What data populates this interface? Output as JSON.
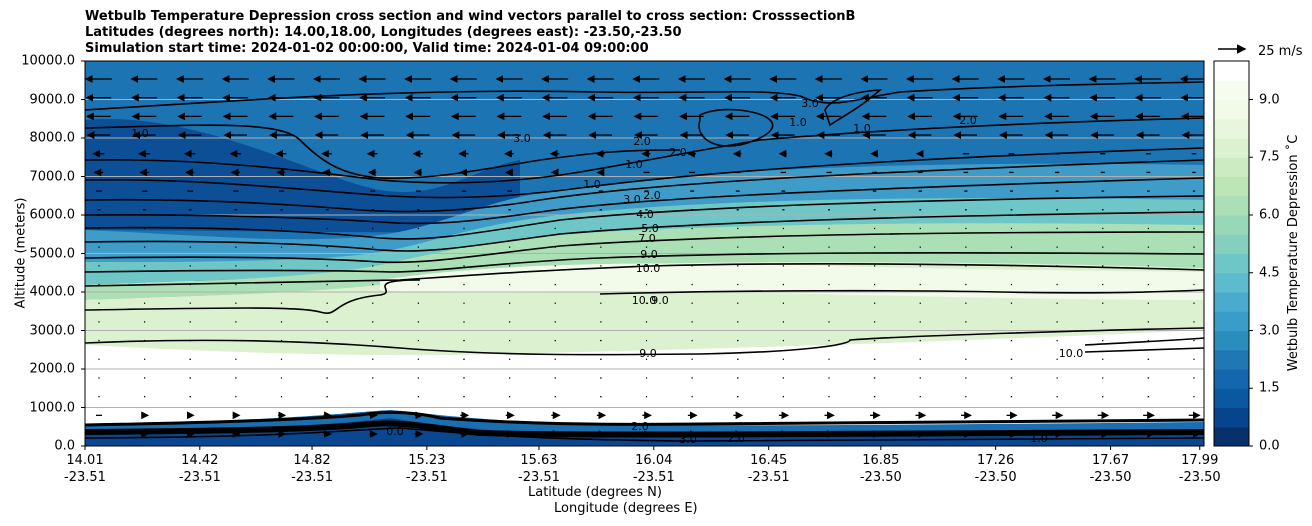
{
  "chart_data": {
    "type": "contour-cross-section",
    "title_lines": [
      "Wetbulb Temperature Depression cross section and wind vectors parallel to cross section: CrosssectionB",
      "Latitudes (degrees north): 14.00,18.00, Longitudes (degrees east): -23.50,-23.50",
      "Simulation start time: 2024-01-02 00:00:00, Valid time: 2024-01-04 09:00:00"
    ],
    "ylabel": "Altitude (meters)",
    "xlabel_lat": "Latitude (degrees N)",
    "xlabel_lon": "Longitude (degrees E)",
    "ylim": [
      0,
      10000
    ],
    "yticks": [
      "0.0",
      "1000.0",
      "2000.0",
      "3000.0",
      "4000.0",
      "5000.0",
      "6000.0",
      "7000.0",
      "8000.0",
      "9000.0",
      "10000.0"
    ],
    "ytick_values": [
      0,
      1000,
      2000,
      3000,
      4000,
      5000,
      6000,
      7000,
      8000,
      9000,
      10000
    ],
    "xticks": [
      {
        "lat": "14.01",
        "lon": "-23.51"
      },
      {
        "lat": "14.42",
        "lon": "-23.51"
      },
      {
        "lat": "14.82",
        "lon": "-23.51"
      },
      {
        "lat": "15.23",
        "lon": "-23.51"
      },
      {
        "lat": "15.63",
        "lon": "-23.51"
      },
      {
        "lat": "16.04",
        "lon": "-23.51"
      },
      {
        "lat": "16.45",
        "lon": "-23.51"
      },
      {
        "lat": "16.85",
        "lon": "-23.50"
      },
      {
        "lat": "17.26",
        "lon": "-23.50"
      },
      {
        "lat": "17.67",
        "lon": "-23.50"
      },
      {
        "lat": "17.99",
        "lon": "-23.50"
      }
    ],
    "xtick_fractions": [
      0,
      0.1026,
      0.2029,
      0.3055,
      0.4057,
      0.5083,
      0.611,
      0.7112,
      0.8138,
      0.9165,
      0.9962
    ],
    "colorbar": {
      "label": "Wetbulb Temperature Depression ˚C",
      "range": [
        0,
        10
      ],
      "ticks": [
        "0.0",
        "1.5",
        "3.0",
        "4.5",
        "6.0",
        "7.5",
        "9.0"
      ],
      "tick_values": [
        0,
        1.5,
        3,
        4.5,
        6,
        7.5,
        9
      ],
      "colors": [
        "#08306b",
        "#08448c",
        "#0a58a0",
        "#1467ad",
        "#1f78b4",
        "#2b8cbe",
        "#3a9cc8",
        "#4aabcf",
        "#5cbbcd",
        "#6fc6c6",
        "#84cfbe",
        "#98d8b8",
        "#abdfb5",
        "#bde5b6",
        "#cdebc3",
        "#dcf1d0",
        "#e8f6dd",
        "#f2fae9",
        "#f7fcf0",
        "#ffffff"
      ]
    },
    "quiver_key": "25 m/s",
    "contour_labels": [
      "2.0",
      "3.0",
      "1.0",
      "1.0",
      "2.0",
      "2.0",
      "3.0",
      "4.0",
      "5.0",
      "7.0",
      "9.0",
      "10.0",
      "10.0",
      "9.0",
      "9.0",
      "10.0",
      "2.0",
      "3.0",
      "1.0",
      "1.0",
      "1.0",
      "2.0",
      "1.0",
      "0.0",
      "2.0",
      "3.0"
    ]
  }
}
